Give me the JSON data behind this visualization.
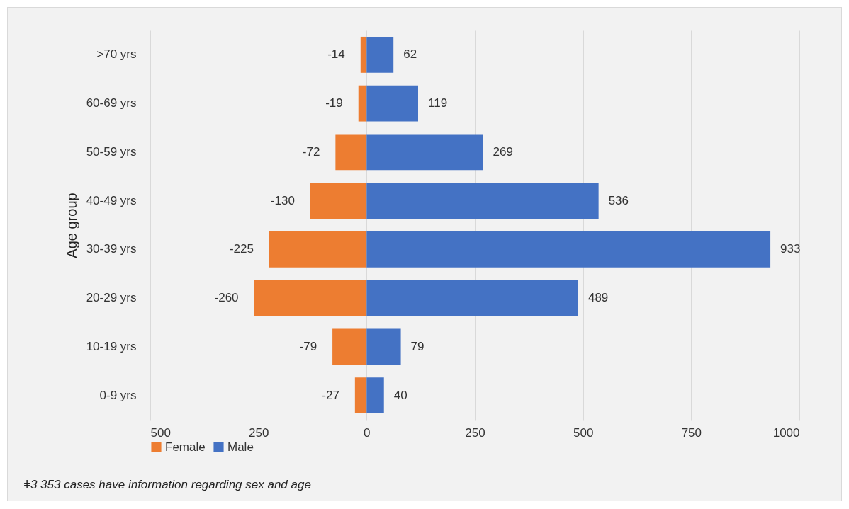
{
  "chart_data": {
    "type": "bar",
    "orientation": "horizontal",
    "stacked": true,
    "ylabel": "Age group",
    "categories": [
      ">70 yrs",
      "60-69 yrs",
      "50-59 yrs",
      "40-49 yrs",
      "30-39 yrs",
      "20-29 yrs",
      "10-19 yrs",
      "0-9 yrs"
    ],
    "series": [
      {
        "name": "Female",
        "color": "#ed7d31",
        "values": [
          -14,
          -19,
          -72,
          -130,
          -225,
          -260,
          -79,
          -27
        ]
      },
      {
        "name": "Male",
        "color": "#4472c4",
        "values": [
          62,
          119,
          269,
          536,
          933,
          489,
          79,
          40
        ]
      }
    ],
    "xlim": [
      -500,
      1000
    ],
    "xticks": [
      {
        "value": -500,
        "label": "500"
      },
      {
        "value": -250,
        "label": "250"
      },
      0,
      250,
      500,
      750,
      1000
    ],
    "grid": "x",
    "legend": "bottom",
    "data_labels": true,
    "annotations": [
      "ǂ3 353 cases have information regarding sex and age"
    ]
  }
}
